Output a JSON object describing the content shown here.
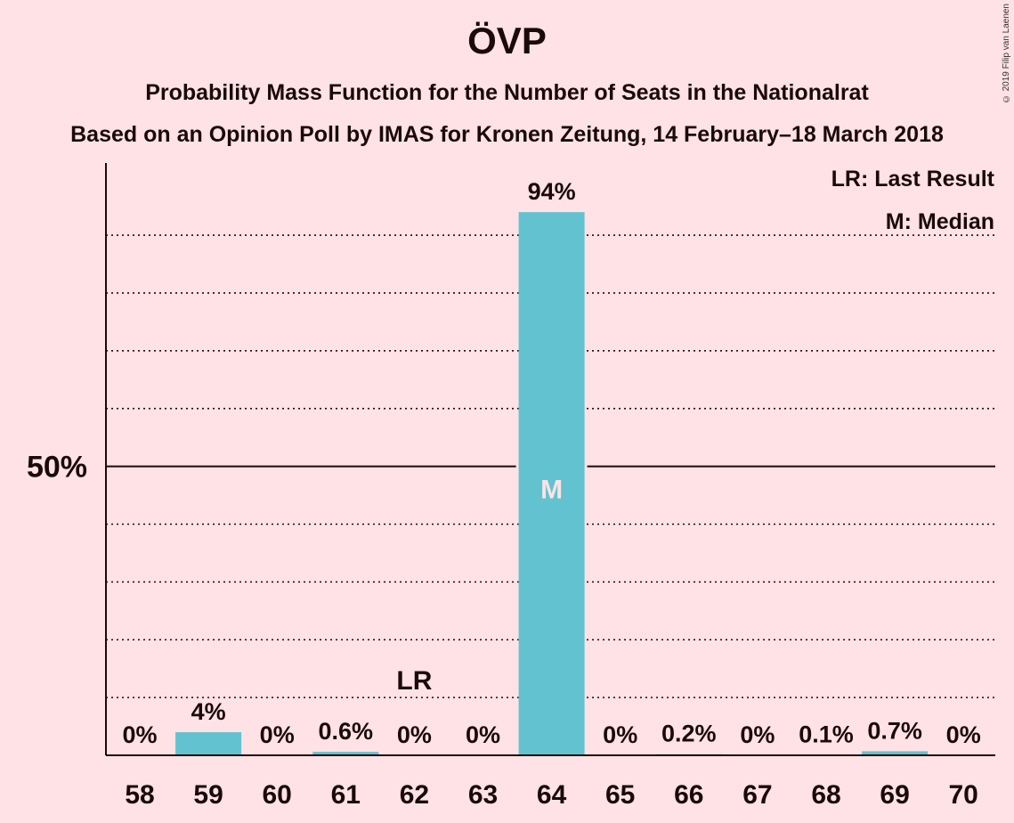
{
  "chart_data": {
    "type": "bar",
    "title": "ÖVP",
    "subtitle": "Probability Mass Function for the Number of Seats in the Nationalrat",
    "subtitle2": "Based on an Opinion Poll by IMAS for Kronen Zeitung, 14 February–18 March 2018",
    "copyright": "© 2019 Filip van Laenen",
    "categories": [
      "58",
      "59",
      "60",
      "61",
      "62",
      "63",
      "64",
      "65",
      "66",
      "67",
      "68",
      "69",
      "70"
    ],
    "values": [
      0,
      4,
      0,
      0.6,
      0,
      0,
      94,
      0,
      0.2,
      0,
      0.1,
      0.7,
      0
    ],
    "data_labels": [
      "0%",
      "4%",
      "0%",
      "0.6%",
      "0%",
      "0%",
      "94%",
      "0%",
      "0.2%",
      "0%",
      "0.1%",
      "0.7%",
      "0%"
    ],
    "ylim": [
      0,
      102.5
    ],
    "y_tick_label": "50%",
    "y_tick_value": 50,
    "gridlines": [
      10,
      20,
      30,
      40,
      60,
      70,
      80,
      90
    ],
    "last_result": {
      "category": "62",
      "label": "LR"
    },
    "median": {
      "category": "64",
      "label": "M"
    },
    "legend": [
      "LR: Last Result",
      "M: Median"
    ],
    "legend_position": "top-right",
    "bar_color": "#63C2D0",
    "background_color": "#FFE2E5"
  }
}
